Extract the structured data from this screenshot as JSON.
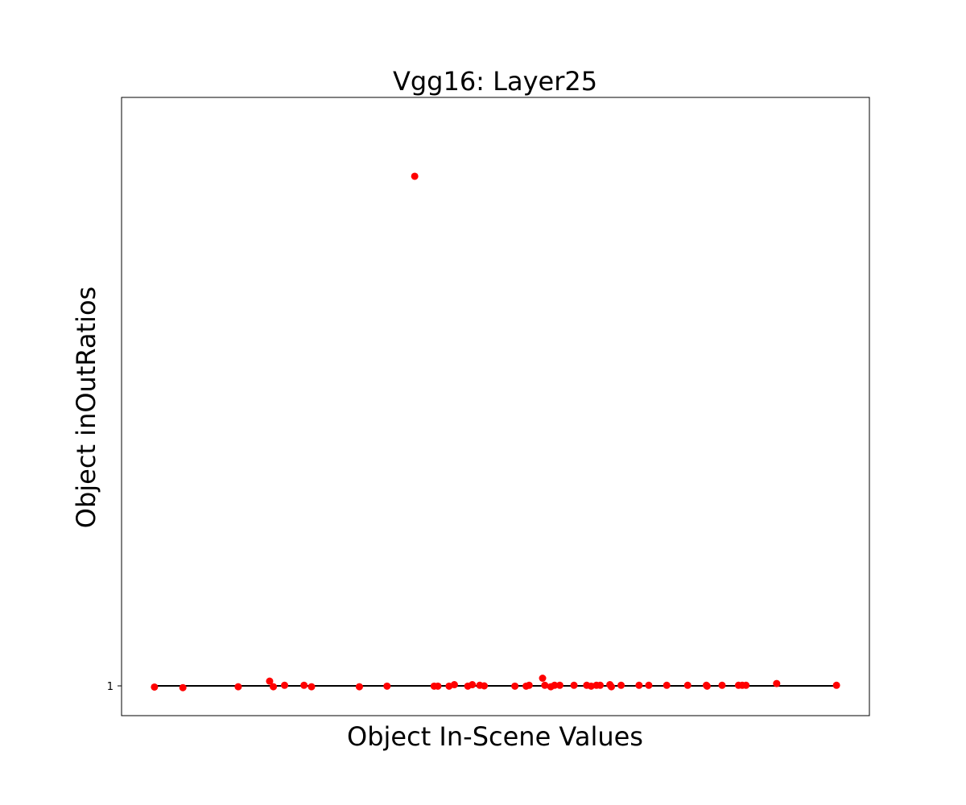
{
  "chart_data": {
    "type": "scatter",
    "title": "Vgg16: Layer25",
    "xlabel": "Object In-Scene Values",
    "ylabel": "Object inOutRatios",
    "xlim": [
      0,
      100
    ],
    "ylim": [
      0.947,
      1.055
    ],
    "x_ticks_shown": false,
    "y_ticks": [
      1
    ],
    "y_tick_labels": [
      "1"
    ],
    "grid": false,
    "point_color": "#ff0000",
    "line_color": "#000000",
    "reference_line": {
      "x": [
        4.4,
        95.6
      ],
      "y": [
        1.0,
        1.0
      ]
    },
    "x": [
      4.4,
      8.2,
      15.6,
      19.8,
      20.3,
      21.8,
      24.4,
      25.4,
      31.8,
      35.5,
      39.2,
      41.8,
      42.3,
      43.8,
      44.5,
      46.3,
      46.9,
      47.9,
      48.5,
      52.6,
      54.1,
      54.5,
      56.3,
      56.6,
      57.4,
      57.9,
      58.6,
      60.5,
      62.2,
      62.8,
      63.5,
      64.0,
      65.3,
      65.5,
      66.8,
      69.2,
      70.5,
      72.9,
      75.7,
      78.2,
      78.3,
      80.3,
      82.5,
      83.0,
      83.5,
      87.6,
      95.6
    ],
    "y": [
      0.9998,
      0.9997,
      0.99985,
      1.0008,
      0.99985,
      1.0001,
      1.0001,
      0.99985,
      0.99985,
      0.99995,
      1.0,
      0.99995,
      0.99995,
      0.99995,
      1.0002,
      0.99995,
      1.0002,
      1.0001,
      1.0,
      0.99995,
      0.99995,
      1.0001,
      1.0013,
      1.0001,
      0.99985,
      1.0001,
      1.0001,
      1.0001,
      1.0001,
      0.99995,
      1.0001,
      1.0001,
      1.0002,
      0.99985,
      1.0001,
      1.0001,
      1.0001,
      1.0001,
      1.0001,
      1.0001,
      0.99995,
      1.0001,
      1.0001,
      1.0001,
      1.0001,
      1.0004,
      1.0001
    ]
  },
  "outlier": {
    "x": 39.2,
    "y": 1.05
  }
}
